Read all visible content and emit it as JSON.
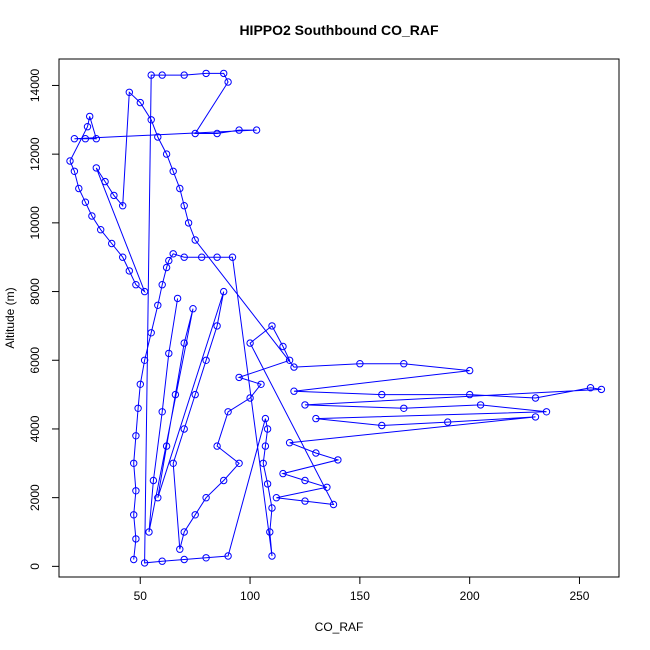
{
  "chart_data": {
    "type": "scatter",
    "title": "HIPPO2 Southbound CO_RAF",
    "xlabel": "CO_RAF",
    "ylabel": "Altitude (m)",
    "xlim": [
      13,
      268
    ],
    "ylim": [
      -310,
      14770
    ],
    "x_ticks": [
      50,
      100,
      150,
      200,
      250
    ],
    "y_ticks": [
      0,
      2000,
      4000,
      6000,
      8000,
      10000,
      12000,
      14000
    ],
    "marker": "open-circle",
    "connected_by_lines": true,
    "color": "#0000ff",
    "grid": false,
    "legend": "none",
    "series": [
      {
        "name": "",
        "points": [
          [
            47,
            200
          ],
          [
            48,
            800
          ],
          [
            47,
            1500
          ],
          [
            48,
            2200
          ],
          [
            47,
            3000
          ],
          [
            48,
            3800
          ],
          [
            49,
            4600
          ],
          [
            50,
            5300
          ],
          [
            52,
            6000
          ],
          [
            55,
            6800
          ],
          [
            58,
            7600
          ],
          [
            60,
            8200
          ],
          [
            62,
            8700
          ],
          [
            63,
            8900
          ],
          [
            65,
            9100
          ],
          [
            70,
            9000
          ],
          [
            78,
            9000
          ],
          [
            85,
            9000
          ],
          [
            92,
            9000
          ],
          [
            110,
            300
          ],
          [
            109,
            1000
          ],
          [
            110,
            1700
          ],
          [
            108,
            2400
          ],
          [
            106,
            3000
          ],
          [
            107,
            3500
          ],
          [
            108,
            4000
          ],
          [
            107,
            4300
          ],
          [
            90,
            300
          ],
          [
            80,
            250
          ],
          [
            70,
            200
          ],
          [
            60,
            150
          ],
          [
            52,
            100
          ],
          [
            55,
            14300
          ],
          [
            60,
            14300
          ],
          [
            70,
            14300
          ],
          [
            80,
            14350
          ],
          [
            88,
            14350
          ],
          [
            90,
            14100
          ],
          [
            75,
            12600
          ],
          [
            85,
            12600
          ],
          [
            95,
            12700
          ],
          [
            103,
            12700
          ],
          [
            20,
            12450
          ],
          [
            25,
            12450
          ],
          [
            30,
            12450
          ],
          [
            27,
            13100
          ],
          [
            26,
            12800
          ],
          [
            18,
            11800
          ],
          [
            20,
            11500
          ],
          [
            22,
            11000
          ],
          [
            25,
            10600
          ],
          [
            28,
            10200
          ],
          [
            32,
            9800
          ],
          [
            37,
            9400
          ],
          [
            42,
            9000
          ],
          [
            45,
            8600
          ],
          [
            48,
            8200
          ],
          [
            52,
            8000
          ],
          [
            30,
            11600
          ],
          [
            34,
            11200
          ],
          [
            38,
            10800
          ],
          [
            42,
            10500
          ],
          [
            45,
            13800
          ],
          [
            50,
            13500
          ],
          [
            55,
            13000
          ],
          [
            58,
            12500
          ],
          [
            62,
            12000
          ],
          [
            65,
            11500
          ],
          [
            68,
            11000
          ],
          [
            70,
            10500
          ],
          [
            72,
            10000
          ],
          [
            75,
            9500
          ],
          [
            120,
            5800
          ],
          [
            150,
            5900
          ],
          [
            170,
            5900
          ],
          [
            200,
            5700
          ],
          [
            120,
            5100
          ],
          [
            160,
            5000
          ],
          [
            200,
            5000
          ],
          [
            230,
            4900
          ],
          [
            255,
            5200
          ],
          [
            260,
            5150
          ],
          [
            125,
            4700
          ],
          [
            170,
            4600
          ],
          [
            205,
            4700
          ],
          [
            235,
            4500
          ],
          [
            130,
            4300
          ],
          [
            160,
            4100
          ],
          [
            190,
            4200
          ],
          [
            230,
            4350
          ],
          [
            118,
            3600
          ],
          [
            130,
            3300
          ],
          [
            140,
            3100
          ],
          [
            115,
            2700
          ],
          [
            125,
            2500
          ],
          [
            135,
            2300
          ],
          [
            112,
            2000
          ],
          [
            125,
            1900
          ],
          [
            138,
            1800
          ],
          [
            100,
            6500
          ],
          [
            110,
            7000
          ],
          [
            115,
            6400
          ],
          [
            118,
            6000
          ],
          [
            95,
            5500
          ],
          [
            105,
            5300
          ],
          [
            100,
            4900
          ],
          [
            90,
            4500
          ],
          [
            85,
            3500
          ],
          [
            95,
            3000
          ],
          [
            88,
            2500
          ],
          [
            80,
            2000
          ],
          [
            75,
            1500
          ],
          [
            70,
            1000
          ],
          [
            68,
            500
          ],
          [
            65,
            3000
          ],
          [
            70,
            4000
          ],
          [
            75,
            5000
          ],
          [
            80,
            6000
          ],
          [
            85,
            7000
          ],
          [
            88,
            8000
          ],
          [
            58,
            2000
          ],
          [
            62,
            3500
          ],
          [
            66,
            5000
          ],
          [
            70,
            6500
          ],
          [
            74,
            7500
          ],
          [
            54,
            1000
          ],
          [
            56,
            2500
          ],
          [
            60,
            4500
          ],
          [
            63,
            6200
          ],
          [
            67,
            7800
          ]
        ]
      }
    ]
  }
}
